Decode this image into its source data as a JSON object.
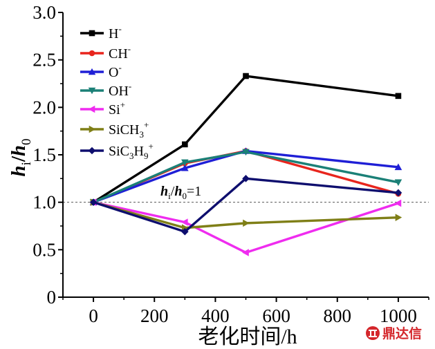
{
  "chart_data": {
    "type": "line",
    "xlabel": "老化时间/h",
    "ylabel": {
      "h1": "h",
      "s1": "i",
      "slash": "/",
      "h2": "h",
      "s2": "0"
    },
    "xlim": [
      -100,
      1100
    ],
    "ylim": [
      0,
      3.0
    ],
    "xticks": [
      0,
      200,
      400,
      600,
      800,
      1000
    ],
    "yticks": [
      0,
      0.5,
      1.0,
      1.5,
      2.0,
      2.5,
      3.0
    ],
    "ytick_labels": [
      "0",
      "0.5",
      "1.0",
      "1.5",
      "2.0",
      "2.5",
      "3.0"
    ],
    "x": [
      0,
      300,
      500,
      1000
    ],
    "grid": false,
    "legend_position": "top-left",
    "series": [
      {
        "name": "H",
        "sup": "-",
        "color": "#000000",
        "marker": "square",
        "values": [
          1.0,
          1.61,
          2.33,
          2.12
        ]
      },
      {
        "name": "CH",
        "sup": "-",
        "color": "#e8251d",
        "marker": "circle",
        "values": [
          1.0,
          1.41,
          1.54,
          1.09
        ]
      },
      {
        "name": "O",
        "sup": "-",
        "color": "#1f1fd6",
        "marker": "triangle-up",
        "values": [
          1.0,
          1.36,
          1.54,
          1.37
        ]
      },
      {
        "name": "OH",
        "sup": "-",
        "color": "#1b8077",
        "marker": "triangle-down",
        "values": [
          1.0,
          1.42,
          1.53,
          1.21
        ]
      },
      {
        "name": "Si",
        "sup": "+",
        "color": "#ef2cef",
        "marker": "triangle-left",
        "values": [
          1.0,
          0.79,
          0.47,
          0.99
        ]
      },
      {
        "name": "SiCH",
        "sub": "3",
        "sup": "+",
        "color": "#7f7f17",
        "marker": "triangle-right",
        "values": [
          1.0,
          0.73,
          0.78,
          0.84
        ]
      },
      {
        "name": "SiC",
        "sub": "3",
        "name2": "H",
        "sub2": "9",
        "sup": "+",
        "color": "#0e0e6e",
        "marker": "diamond",
        "values": [
          1.0,
          0.69,
          1.25,
          1.1
        ]
      }
    ],
    "reference_line": {
      "y": 1.0,
      "label": {
        "h1": "h",
        "s1": "i",
        "slash": "/",
        "h2": "h",
        "s2": "0",
        "eq": "=1"
      }
    }
  },
  "watermark": {
    "text": "鼎达信"
  }
}
